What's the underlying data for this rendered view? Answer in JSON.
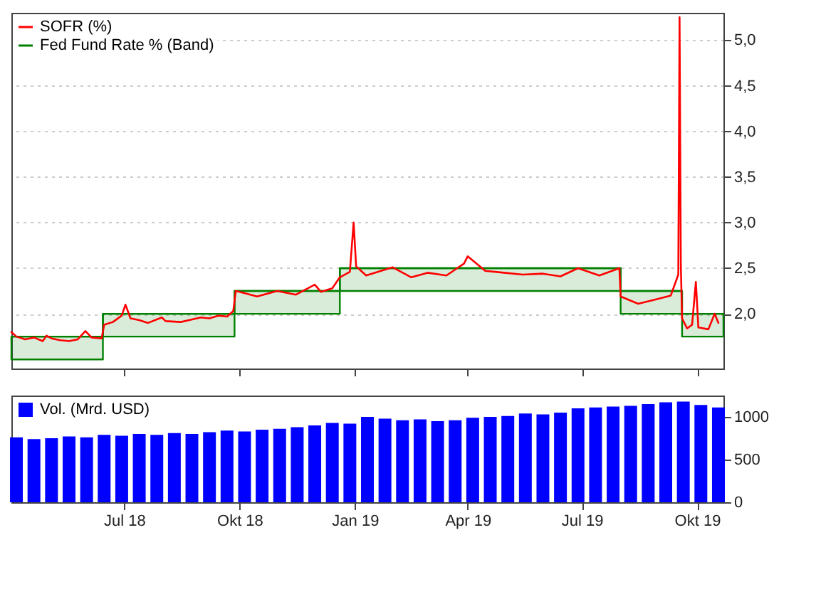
{
  "chart_data": [
    {
      "type": "line",
      "legend": "top left",
      "grid": "y",
      "tick_labels": "y",
      "xlim": [
        "2018-04-02",
        "2019-10-22"
      ],
      "xticks": [
        {
          "value": "2018-07-01",
          "label": null
        },
        {
          "value": "2018-10-01",
          "label": null
        },
        {
          "value": "2019-01-01",
          "label": null
        },
        {
          "value": "2019-04-01",
          "label": null
        },
        {
          "value": "2019-07-01",
          "label": null
        },
        {
          "value": "2019-10-01",
          "label": null
        }
      ],
      "ylim": [
        1.4,
        5.3
      ],
      "yticks": [
        {
          "value": 2,
          "label": "2,0"
        },
        {
          "value": 2.5,
          "label": "2,5"
        },
        {
          "value": 3,
          "label": "3,0"
        },
        {
          "value": 3.5,
          "label": "3,5"
        },
        {
          "value": 4,
          "label": "4,0"
        },
        {
          "value": 4.5,
          "label": "4,5"
        },
        {
          "value": 5,
          "label": "5,0"
        }
      ],
      "series": [
        {
          "name": "SOFR (%)",
          "type": "line",
          "color": "#ff0000",
          "x": [
            "2018-04-02",
            "2018-04-06",
            "2018-04-13",
            "2018-04-20",
            "2018-04-27",
            "2018-04-30",
            "2018-05-04",
            "2018-05-11",
            "2018-05-18",
            "2018-05-25",
            "2018-05-31",
            "2018-06-05",
            "2018-06-13",
            "2018-06-15",
            "2018-06-22",
            "2018-06-29",
            "2018-07-02",
            "2018-07-06",
            "2018-07-13",
            "2018-07-20",
            "2018-07-31",
            "2018-08-03",
            "2018-08-15",
            "2018-08-31",
            "2018-09-07",
            "2018-09-14",
            "2018-09-21",
            "2018-09-26",
            "2018-09-28",
            "2018-10-01",
            "2018-10-15",
            "2018-10-31",
            "2018-11-15",
            "2018-11-30",
            "2018-12-05",
            "2018-12-14",
            "2018-12-20",
            "2018-12-28",
            "2018-12-31",
            "2019-01-02",
            "2019-01-10",
            "2019-01-31",
            "2019-02-15",
            "2019-02-28",
            "2019-03-15",
            "2019-03-29",
            "2019-04-01",
            "2019-04-15",
            "2019-04-30",
            "2019-05-15",
            "2019-05-31",
            "2019-06-14",
            "2019-06-28",
            "2019-07-15",
            "2019-07-31",
            "2019-08-01",
            "2019-08-15",
            "2019-08-30",
            "2019-09-10",
            "2019-09-16",
            "2019-09-17",
            "2019-09-18",
            "2019-09-19",
            "2019-09-23",
            "2019-09-27",
            "2019-09-30",
            "2019-10-02",
            "2019-10-10",
            "2019-10-15",
            "2019-10-18"
          ],
          "values": [
            1.8,
            1.75,
            1.72,
            1.74,
            1.7,
            1.76,
            1.73,
            1.71,
            1.7,
            1.72,
            1.81,
            1.74,
            1.73,
            1.88,
            1.91,
            1.98,
            2.1,
            1.95,
            1.93,
            1.9,
            1.96,
            1.92,
            1.91,
            1.96,
            1.95,
            1.98,
            1.97,
            2.03,
            2.25,
            2.24,
            2.19,
            2.25,
            2.21,
            2.32,
            2.24,
            2.28,
            2.4,
            2.46,
            3.0,
            2.52,
            2.42,
            2.51,
            2.4,
            2.45,
            2.42,
            2.55,
            2.63,
            2.47,
            2.45,
            2.43,
            2.44,
            2.41,
            2.5,
            2.42,
            2.5,
            2.19,
            2.11,
            2.16,
            2.2,
            2.43,
            5.25,
            2.55,
            1.95,
            1.84,
            1.88,
            2.35,
            1.85,
            1.83,
            2.0,
            1.9
          ]
        },
        {
          "name": "Fed Fund Rate % (Band)",
          "type": "step",
          "color": "#008000",
          "x": [
            "2018-04-02",
            "2018-06-14",
            "2018-09-27",
            "2018-12-20",
            "2019-08-01",
            "2019-09-19",
            "2019-10-22"
          ],
          "values": [
            1.75,
            2.0,
            2.25,
            2.5,
            2.25,
            2.0,
            2.0
          ],
          "upper": [
            1.75,
            2.0,
            2.25,
            2.5,
            2.25,
            2.0,
            2.0
          ],
          "lower": [
            1.5,
            1.75,
            2.0,
            2.25,
            2.0,
            1.75,
            1.75
          ]
        }
      ]
    },
    {
      "type": "bar",
      "legend": "top left",
      "xlim": [
        "2018-04-02",
        "2019-10-22"
      ],
      "xticks": [
        {
          "value": "2018-07-01",
          "label": "Jul 18"
        },
        {
          "value": "2018-10-01",
          "label": "Okt 18"
        },
        {
          "value": "2019-01-01",
          "label": "Jan 19"
        },
        {
          "value": "2019-04-01",
          "label": "Apr 19"
        },
        {
          "value": "2019-07-01",
          "label": "Jul 19"
        },
        {
          "value": "2019-10-01",
          "label": "Okt 19"
        }
      ],
      "ylim": [
        0,
        1250
      ],
      "yticks": [
        0,
        500,
        1000
      ],
      "series": [
        {
          "name": "Vol. (Mrd. USD)",
          "color": "#0000ff",
          "x": [
            "2018-04-06",
            "2018-04-20",
            "2018-05-04",
            "2018-05-18",
            "2018-06-01",
            "2018-06-15",
            "2018-06-29",
            "2018-07-13",
            "2018-07-27",
            "2018-08-10",
            "2018-08-24",
            "2018-09-07",
            "2018-09-21",
            "2018-10-05",
            "2018-10-19",
            "2018-11-02",
            "2018-11-16",
            "2018-11-30",
            "2018-12-14",
            "2018-12-28",
            "2019-01-11",
            "2019-01-25",
            "2019-02-08",
            "2019-02-22",
            "2019-03-08",
            "2019-03-22",
            "2019-04-05",
            "2019-04-19",
            "2019-05-03",
            "2019-05-17",
            "2019-05-31",
            "2019-06-14",
            "2019-06-28",
            "2019-07-12",
            "2019-07-26",
            "2019-08-09",
            "2019-08-23",
            "2019-09-06",
            "2019-09-20",
            "2019-10-04",
            "2019-10-18"
          ],
          "values": [
            760,
            740,
            750,
            770,
            760,
            790,
            780,
            800,
            790,
            810,
            800,
            820,
            840,
            830,
            850,
            860,
            880,
            900,
            930,
            920,
            1000,
            980,
            960,
            970,
            950,
            960,
            990,
            1000,
            1010,
            1040,
            1030,
            1050,
            1100,
            1110,
            1120,
            1130,
            1150,
            1170,
            1180,
            1140,
            1110
          ]
        }
      ]
    }
  ]
}
